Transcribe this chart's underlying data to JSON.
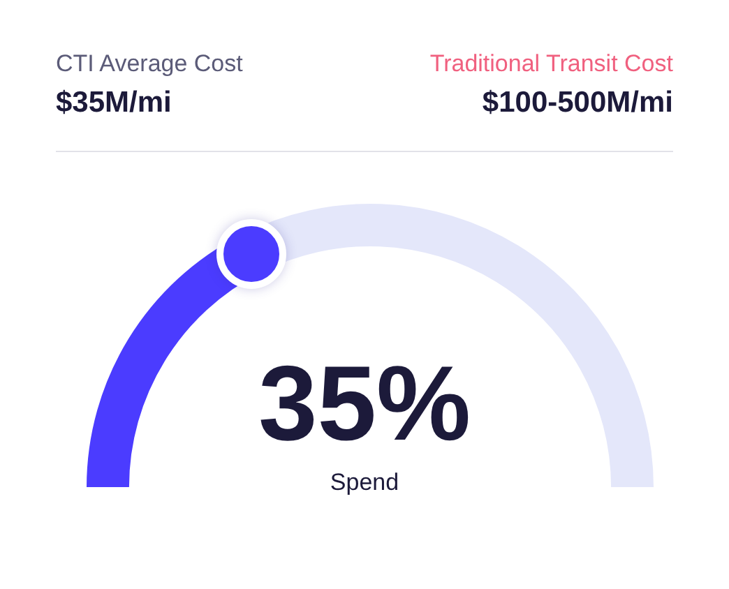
{
  "chart_data": {
    "type": "donut",
    "categories": [
      "Spend",
      null
    ],
    "values": [
      35,
      65
    ],
    "colors": [
      "#4b3cff",
      "#e4e7fa"
    ],
    "value_labels": [
      "35%",
      null
    ],
    "annotations": [
      "CTI Average Cost",
      "$35M/mi",
      "Traditional Transit Cost",
      "$100-500M/mi"
    ],
    "legend": false
  }
}
